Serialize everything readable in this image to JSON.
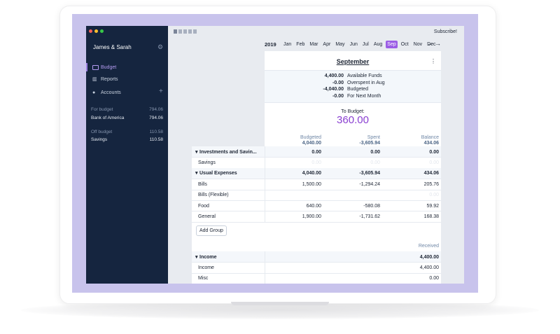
{
  "window": {
    "subscribe": "Subscribe!"
  },
  "sidebar": {
    "title": "James & Sarah",
    "nav": [
      "Budget",
      "Reports",
      "Accounts"
    ],
    "accounts": [
      {
        "name": "For budget",
        "balance": "794.06",
        "heading": true
      },
      {
        "name": "Bank of America",
        "balance": "794.06"
      },
      {
        "name": "Off budget",
        "balance": "110.58",
        "heading": true
      },
      {
        "name": "Savings",
        "balance": "110.58"
      }
    ]
  },
  "months": {
    "year": "2019",
    "names": [
      "Jan",
      "Feb",
      "Mar",
      "Apr",
      "May",
      "Jun",
      "Jul",
      "Aug",
      "Sep",
      "Oct",
      "Nov",
      "Dec"
    ],
    "selected": 8
  },
  "budget": {
    "month": "September",
    "summary": [
      {
        "value": "4,400.00",
        "label": "Available Funds"
      },
      {
        "value": "-0.00",
        "label": "Overspent in Aug"
      },
      {
        "value": "-4,040.00",
        "label": "Budgeted"
      },
      {
        "value": "-0.00",
        "label": "For Next Month"
      }
    ],
    "to_budget_label": "To Budget:",
    "to_budget": "360.00",
    "columns": [
      {
        "label": "Budgeted",
        "total": "4,040.00"
      },
      {
        "label": "Spent",
        "total": "-3,605.94"
      },
      {
        "label": "Balance",
        "total": "434.06"
      }
    ],
    "groups": [
      {
        "name": "Investments and Savin...",
        "values": [
          "0.00",
          "0.00",
          "0.00"
        ],
        "rows": [
          {
            "name": "Savings",
            "values": [
              "0.00",
              "0.00",
              "0.00"
            ],
            "faint": true
          }
        ]
      },
      {
        "name": "Usual Expenses",
        "values": [
          "4,040.00",
          "-3,605.94",
          "434.06"
        ],
        "rows": [
          {
            "name": "Bills",
            "values": [
              "1,500.00",
              "-1,294.24",
              "205.76"
            ]
          },
          {
            "name": "Bills (Flexible)",
            "values": [
              null,
              null,
              "0.00"
            ],
            "faint": true
          },
          {
            "name": "Food",
            "values": [
              "640.00",
              "-580.08",
              "59.92"
            ]
          },
          {
            "name": "General",
            "values": [
              "1,900.00",
              "-1,731.62",
              "168.38"
            ]
          }
        ]
      }
    ],
    "add_group": "Add Group",
    "income": {
      "received_label": "Received",
      "name": "Income",
      "received": "4,400.00",
      "rows": [
        {
          "name": "Income",
          "received": "4,400.00"
        },
        {
          "name": "Misc",
          "received": "0.00"
        }
      ]
    }
  }
}
